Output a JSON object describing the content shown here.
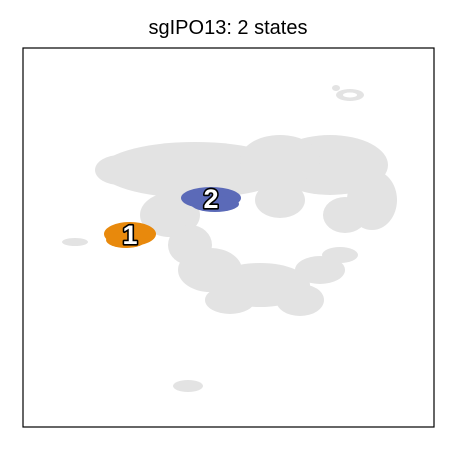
{
  "chart_data": {
    "type": "scatter",
    "title": "sgIPO13: 2 states",
    "xlabel": "",
    "ylabel": "",
    "grid": false,
    "legend": "none",
    "background_color": "#e3e3e3",
    "series": [
      {
        "label": "1",
        "color": "#e8890c",
        "center": [
          130,
          234
        ]
      },
      {
        "label": "2",
        "color": "#5b6ab8",
        "center": [
          211,
          198
        ]
      }
    ]
  }
}
